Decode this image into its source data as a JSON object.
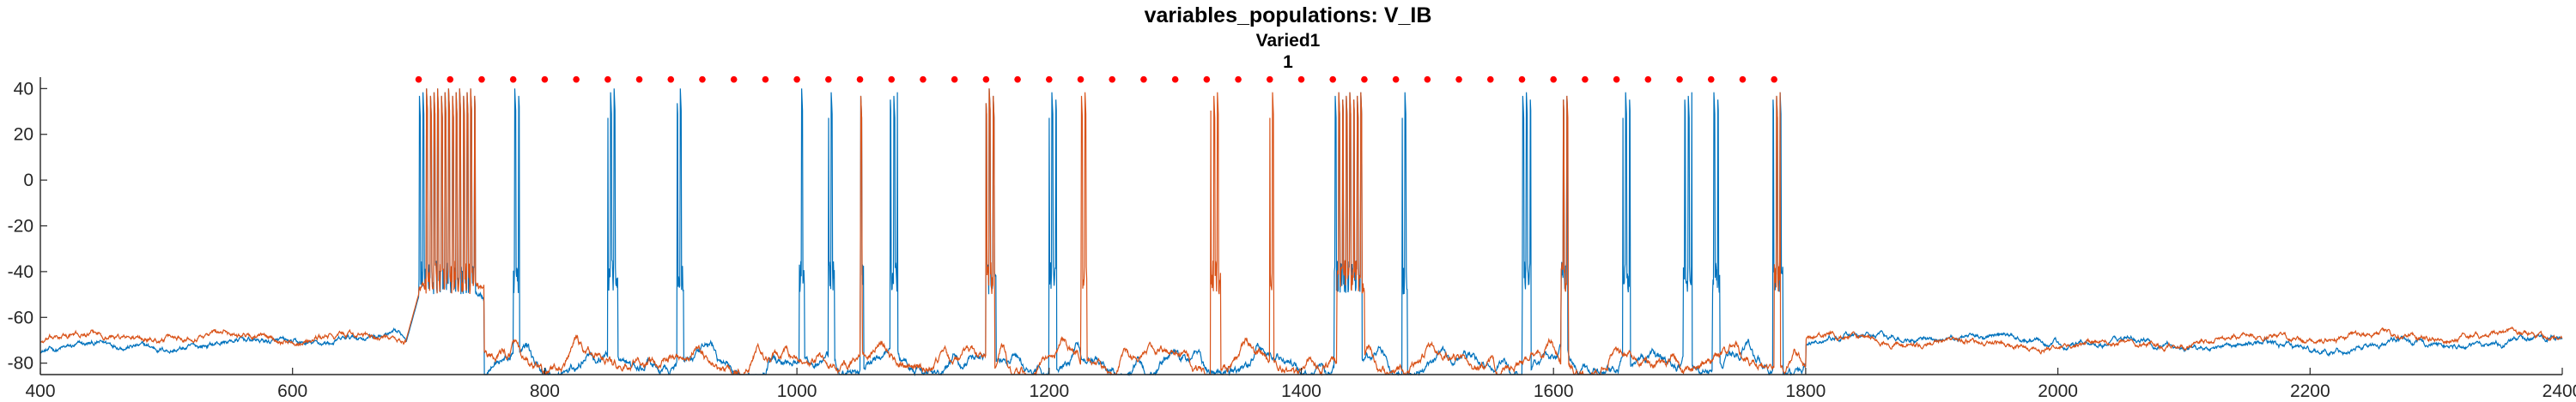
{
  "chart_data": {
    "type": "line",
    "title": "variables_populations: V_IB",
    "subtitle_1": "Varied1",
    "subtitle_2": "1",
    "xlabel": "",
    "ylabel": "",
    "xlim": [
      400,
      2400
    ],
    "ylim": [
      -85,
      45
    ],
    "xticks": [
      400,
      600,
      800,
      1000,
      1200,
      1400,
      1600,
      1800,
      2000,
      2200,
      2400
    ],
    "yticks": [
      -80,
      -60,
      -40,
      -20,
      0,
      20,
      40
    ],
    "grid": false,
    "legend": "none",
    "colors": {
      "series1": "#0072BD",
      "series2": "#D95319",
      "markers": "#FF0000",
      "axis": "#262626"
    },
    "marker_series": {
      "y": 44,
      "x": [
        700,
        725,
        750,
        775,
        800,
        825,
        850,
        875,
        900,
        925,
        950,
        975,
        1000,
        1025,
        1050,
        1075,
        1100,
        1125,
        1150,
        1175,
        1200,
        1225,
        1250,
        1275,
        1300,
        1325,
        1350,
        1375,
        1400,
        1425,
        1450,
        1475,
        1500,
        1525,
        1550,
        1575,
        1600,
        1625,
        1650,
        1675,
        1700,
        1725,
        1750,
        1775
      ]
    },
    "series": [
      {
        "baseline": -71,
        "burst_windows": [
          [
            700,
            745
          ],
          [
            775,
            780
          ],
          [
            850,
            858
          ],
          [
            905,
            910
          ],
          [
            1002,
            1006
          ],
          [
            1025,
            1030
          ],
          [
            1050,
            1053
          ],
          [
            1074,
            1080
          ],
          [
            1150,
            1158
          ],
          [
            1200,
            1206
          ],
          [
            1426,
            1448
          ],
          [
            1480,
            1484
          ],
          [
            1575,
            1582
          ],
          [
            1606,
            1611
          ],
          [
            1655,
            1661
          ],
          [
            1703,
            1710
          ],
          [
            1726,
            1732
          ],
          [
            1774,
            1782
          ]
        ]
      },
      {
        "baseline": -70,
        "burst_windows": [
          [
            705,
            745
          ],
          [
            1050,
            1052
          ],
          [
            1150,
            1157
          ],
          [
            1225,
            1230
          ],
          [
            1328,
            1336
          ],
          [
            1375,
            1378
          ],
          [
            1428,
            1450
          ],
          [
            1606,
            1612
          ],
          [
            1775,
            1780
          ]
        ]
      }
    ]
  }
}
